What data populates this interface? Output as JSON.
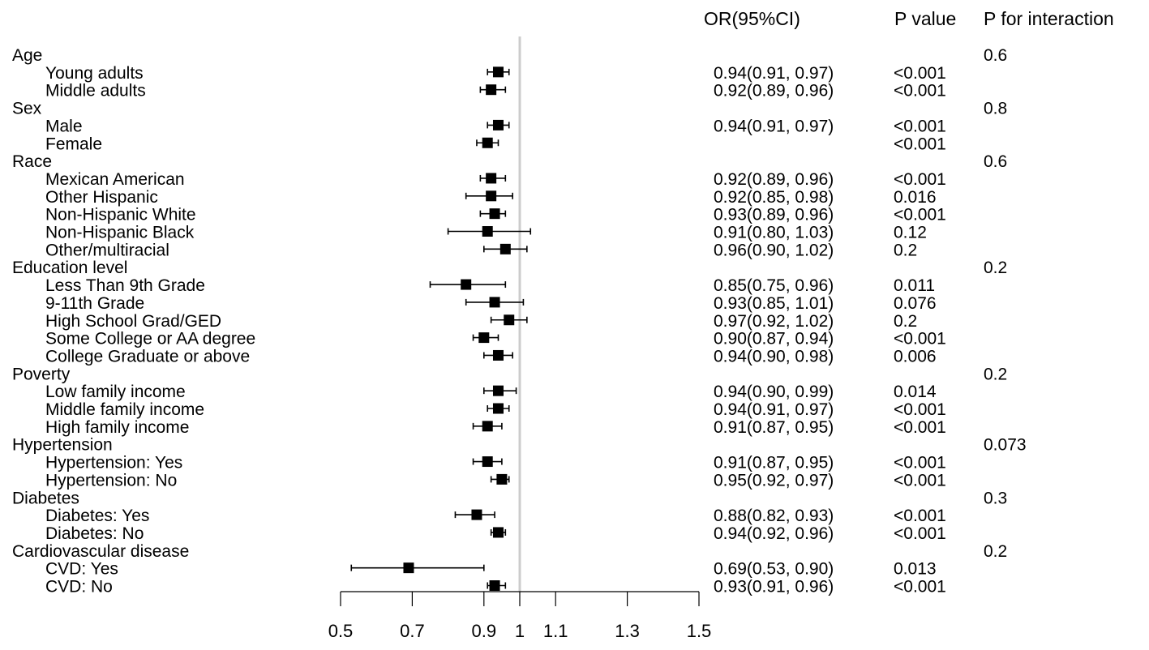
{
  "headers": {
    "or": "OR(95%CI)",
    "p": "P value",
    "pint": "P for interaction"
  },
  "colors": {
    "ink": "#000000",
    "refline": "#cccccc"
  },
  "chart_data": {
    "type": "forest",
    "title": "",
    "xlabel": "",
    "ylabel": "",
    "xlim": [
      0.5,
      1.5
    ],
    "reference": 1,
    "xticks": [
      {
        "value": 0.5,
        "label": "0.5"
      },
      {
        "value": 0.7,
        "label": "0.7"
      },
      {
        "value": 0.9,
        "label": "0.9"
      },
      {
        "value": 1.0,
        "label": "1"
      },
      {
        "value": 1.1,
        "label": "1.1"
      },
      {
        "value": 1.3,
        "label": "1.3"
      },
      {
        "value": 1.5,
        "label": "1.5"
      }
    ],
    "rows": [
      {
        "kind": "group",
        "label": "Age",
        "p_interaction": "0.6"
      },
      {
        "kind": "item",
        "label": "Young adults",
        "or": 0.94,
        "lo": 0.91,
        "hi": 0.97,
        "or_text": "0.94(0.91, 0.97)",
        "p": "<0.001"
      },
      {
        "kind": "item",
        "label": "Middle adults",
        "or": 0.92,
        "lo": 0.89,
        "hi": 0.96,
        "or_text": "0.92(0.89, 0.96)",
        "p": "<0.001"
      },
      {
        "kind": "group",
        "label": "Sex",
        "p_interaction": "0.8"
      },
      {
        "kind": "item",
        "label": "Male",
        "or": 0.94,
        "lo": 0.91,
        "hi": 0.97,
        "or_text": "0.94(0.91, 0.97)",
        "p": "<0.001"
      },
      {
        "kind": "item",
        "label": "Female",
        "or": 0.91,
        "lo": 0.88,
        "hi": 0.94,
        "or_text": "",
        "p": "<0.001"
      },
      {
        "kind": "group",
        "label": "Race",
        "p_interaction": "0.6"
      },
      {
        "kind": "item",
        "label": "Mexican American",
        "or": 0.92,
        "lo": 0.89,
        "hi": 0.96,
        "or_text": "0.92(0.89, 0.96)",
        "p": "<0.001"
      },
      {
        "kind": "item",
        "label": "Other Hispanic",
        "or": 0.92,
        "lo": 0.85,
        "hi": 0.98,
        "or_text": "0.92(0.85, 0.98)",
        "p": "0.016"
      },
      {
        "kind": "item",
        "label": "Non-Hispanic White",
        "or": 0.93,
        "lo": 0.89,
        "hi": 0.96,
        "or_text": "0.93(0.89, 0.96)",
        "p": "<0.001"
      },
      {
        "kind": "item",
        "label": "Non-Hispanic Black",
        "or": 0.91,
        "lo": 0.8,
        "hi": 1.03,
        "or_text": "0.91(0.80, 1.03)",
        "p": "0.12"
      },
      {
        "kind": "item",
        "label": "Other/multiracial",
        "or": 0.96,
        "lo": 0.9,
        "hi": 1.02,
        "or_text": "0.96(0.90, 1.02)",
        "p": "0.2"
      },
      {
        "kind": "group",
        "label": "Education level",
        "p_interaction": "0.2"
      },
      {
        "kind": "item",
        "label": "Less Than 9th Grade",
        "or": 0.85,
        "lo": 0.75,
        "hi": 0.96,
        "or_text": "0.85(0.75, 0.96)",
        "p": "0.011"
      },
      {
        "kind": "item",
        "label": "9-11th Grade",
        "or": 0.93,
        "lo": 0.85,
        "hi": 1.01,
        "or_text": "0.93(0.85, 1.01)",
        "p": "0.076"
      },
      {
        "kind": "item",
        "label": "High School Grad/GED",
        "or": 0.97,
        "lo": 0.92,
        "hi": 1.02,
        "or_text": "0.97(0.92, 1.02)",
        "p": "0.2"
      },
      {
        "kind": "item",
        "label": "Some College or AA degree",
        "or": 0.9,
        "lo": 0.87,
        "hi": 0.94,
        "or_text": "0.90(0.87, 0.94)",
        "p": "<0.001"
      },
      {
        "kind": "item",
        "label": "College Graduate or above",
        "or": 0.94,
        "lo": 0.9,
        "hi": 0.98,
        "or_text": "0.94(0.90, 0.98)",
        "p": "0.006"
      },
      {
        "kind": "group",
        "label": "Poverty",
        "p_interaction": "0.2"
      },
      {
        "kind": "item",
        "label": "Low family income",
        "or": 0.94,
        "lo": 0.9,
        "hi": 0.99,
        "or_text": "0.94(0.90, 0.99)",
        "p": "0.014"
      },
      {
        "kind": "item",
        "label": "Middle family income",
        "or": 0.94,
        "lo": 0.91,
        "hi": 0.97,
        "or_text": "0.94(0.91, 0.97)",
        "p": "<0.001"
      },
      {
        "kind": "item",
        "label": "High family income",
        "or": 0.91,
        "lo": 0.87,
        "hi": 0.95,
        "or_text": "0.91(0.87, 0.95)",
        "p": "<0.001"
      },
      {
        "kind": "group",
        "label": "Hypertension",
        "p_interaction": "0.073"
      },
      {
        "kind": "item",
        "label": "Hypertension: Yes",
        "or": 0.91,
        "lo": 0.87,
        "hi": 0.95,
        "or_text": "0.91(0.87, 0.95)",
        "p": "<0.001"
      },
      {
        "kind": "item",
        "label": "Hypertension: No",
        "or": 0.95,
        "lo": 0.92,
        "hi": 0.97,
        "or_text": "0.95(0.92, 0.97)",
        "p": "<0.001"
      },
      {
        "kind": "group",
        "label": "Diabetes",
        "p_interaction": "0.3"
      },
      {
        "kind": "item",
        "label": "Diabetes: Yes",
        "or": 0.88,
        "lo": 0.82,
        "hi": 0.93,
        "or_text": "0.88(0.82, 0.93)",
        "p": "<0.001"
      },
      {
        "kind": "item",
        "label": "Diabetes: No",
        "or": 0.94,
        "lo": 0.92,
        "hi": 0.96,
        "or_text": "0.94(0.92, 0.96)",
        "p": "<0.001"
      },
      {
        "kind": "group",
        "label": "Cardiovascular disease",
        "p_interaction": "0.2"
      },
      {
        "kind": "item",
        "label": "CVD: Yes",
        "or": 0.69,
        "lo": 0.53,
        "hi": 0.9,
        "or_text": "0.69(0.53, 0.90)",
        "p": "0.013"
      },
      {
        "kind": "item",
        "label": "CVD: No",
        "or": 0.93,
        "lo": 0.91,
        "hi": 0.96,
        "or_text": "0.93(0.91, 0.96)",
        "p": "<0.001"
      }
    ]
  }
}
